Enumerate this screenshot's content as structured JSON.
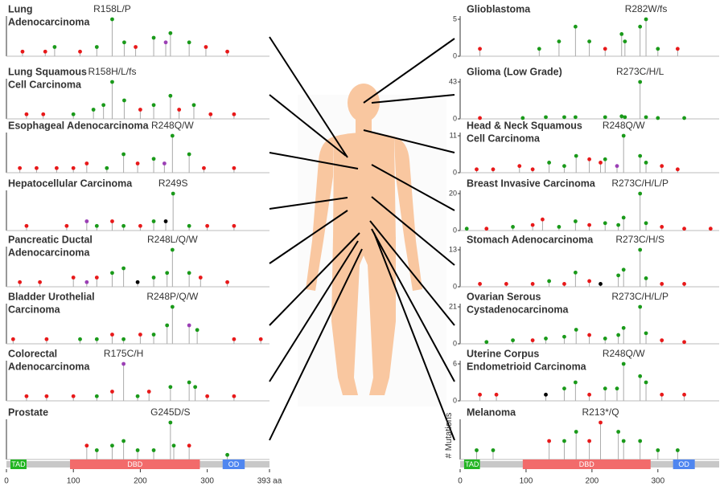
{
  "chart_data": [
    {
      "type": "lollipop",
      "title_lines": [
        "Lung",
        "Adenocarcinoma"
      ],
      "hotspot_label": "R158L/P",
      "xlim": [
        0,
        393
      ],
      "ylim": [
        0,
        8
      ],
      "x": [
        24,
        58,
        72,
        110,
        135,
        158,
        176,
        193,
        220,
        238,
        245,
        273,
        298,
        330
      ],
      "values": [
        1,
        1,
        2,
        1,
        2,
        8,
        3,
        2,
        4,
        3,
        5,
        3,
        2,
        1
      ],
      "colors": [
        "#e8191a",
        "#e8191a",
        "#1a9a1a",
        "#e8191a",
        "#1a9a1a",
        "#1a9a1a",
        "#1a9a1a",
        "#e8191a",
        "#1a9a1a",
        "#9b3fb5",
        "#1a9a1a",
        "#1a9a1a",
        "#e8191a",
        "#e8191a"
      ]
    },
    {
      "type": "lollipop",
      "title_lines": [
        "Lung Squamous",
        "Cell Carcinoma"
      ],
      "hotspot_label": "R158H/L/fs",
      "xlim": [
        0,
        393
      ],
      "ylim": [
        0,
        8
      ],
      "x": [
        30,
        55,
        100,
        130,
        145,
        158,
        176,
        200,
        220,
        245,
        258,
        280,
        305,
        340
      ],
      "values": [
        1,
        1,
        1,
        2,
        3,
        8,
        4,
        2,
        3,
        5,
        2,
        3,
        1,
        1
      ],
      "colors": [
        "#e8191a",
        "#e8191a",
        "#1a9a1a",
        "#1a9a1a",
        "#1a9a1a",
        "#1a9a1a",
        "#1a9a1a",
        "#e8191a",
        "#1a9a1a",
        "#1a9a1a",
        "#e8191a",
        "#1a9a1a",
        "#e8191a",
        "#e8191a"
      ]
    },
    {
      "type": "lollipop",
      "title_lines": [
        "Esophageal Adenocarcinoma"
      ],
      "hotspot_label": "R248Q/W",
      "xlim": [
        0,
        393
      ],
      "ylim": [
        0,
        8
      ],
      "x": [
        20,
        45,
        75,
        100,
        120,
        150,
        175,
        196,
        220,
        236,
        248,
        273,
        295,
        340
      ],
      "values": [
        1,
        1,
        1,
        1,
        2,
        1,
        4,
        2,
        3,
        2,
        8,
        4,
        1,
        1
      ],
      "colors": [
        "#e8191a",
        "#e8191a",
        "#e8191a",
        "#e8191a",
        "#e8191a",
        "#1a9a1a",
        "#1a9a1a",
        "#e8191a",
        "#1a9a1a",
        "#9b3fb5",
        "#1a9a1a",
        "#1a9a1a",
        "#e8191a",
        "#e8191a"
      ]
    },
    {
      "type": "lollipop",
      "title_lines": [
        "Hepatocellular Carcinoma"
      ],
      "hotspot_label": "R249S",
      "xlim": [
        0,
        393
      ],
      "ylim": [
        0,
        8
      ],
      "x": [
        30,
        90,
        120,
        135,
        158,
        175,
        200,
        220,
        238,
        249,
        273,
        300,
        340
      ],
      "values": [
        1,
        1,
        2,
        1,
        2,
        1,
        1,
        2,
        2,
        8,
        1,
        1,
        1
      ],
      "colors": [
        "#e8191a",
        "#e8191a",
        "#9b3fb5",
        "#1a9a1a",
        "#e8191a",
        "#1a9a1a",
        "#e8191a",
        "#1a9a1a",
        "#000000",
        "#1a9a1a",
        "#1a9a1a",
        "#e8191a",
        "#e8191a"
      ]
    },
    {
      "type": "lollipop",
      "title_lines": [
        "Pancreatic Ductal",
        "Adenocarcinoma"
      ],
      "hotspot_label": "R248L/Q/W",
      "xlim": [
        0,
        393
      ],
      "ylim": [
        0,
        8
      ],
      "x": [
        20,
        50,
        100,
        120,
        135,
        158,
        175,
        196,
        220,
        240,
        248,
        273,
        290,
        330
      ],
      "values": [
        1,
        1,
        2,
        1,
        2,
        3,
        4,
        1,
        2,
        3,
        8,
        3,
        2,
        1
      ],
      "colors": [
        "#e8191a",
        "#e8191a",
        "#e8191a",
        "#9b3fb5",
        "#e8191a",
        "#1a9a1a",
        "#1a9a1a",
        "#000000",
        "#1a9a1a",
        "#1a9a1a",
        "#1a9a1a",
        "#1a9a1a",
        "#e8191a",
        "#e8191a"
      ]
    },
    {
      "type": "lollipop",
      "title_lines": [
        "Bladder Urothelial",
        "Carcinoma"
      ],
      "hotspot_label": "R248P/Q/W",
      "xlim": [
        0,
        393
      ],
      "ylim": [
        0,
        8
      ],
      "x": [
        10,
        60,
        110,
        135,
        158,
        175,
        200,
        220,
        240,
        248,
        273,
        285,
        340,
        380
      ],
      "values": [
        1,
        1,
        1,
        1,
        2,
        1,
        2,
        2,
        4,
        8,
        4,
        3,
        1,
        1
      ],
      "colors": [
        "#e8191a",
        "#e8191a",
        "#1a9a1a",
        "#1a9a1a",
        "#e8191a",
        "#1a9a1a",
        "#e8191a",
        "#1a9a1a",
        "#1a9a1a",
        "#1a9a1a",
        "#9b3fb5",
        "#1a9a1a",
        "#e8191a",
        "#e8191a"
      ]
    },
    {
      "type": "lollipop",
      "title_lines": [
        "Colorectal",
        "Adenocarcinoma"
      ],
      "hotspot_label": "R175C/H",
      "xlim": [
        0,
        393
      ],
      "ylim": [
        0,
        8
      ],
      "x": [
        30,
        60,
        100,
        135,
        158,
        175,
        196,
        213,
        245,
        273,
        282,
        300,
        340
      ],
      "values": [
        1,
        1,
        1,
        1,
        2,
        8,
        1,
        2,
        3,
        4,
        3,
        1,
        1
      ],
      "colors": [
        "#e8191a",
        "#e8191a",
        "#e8191a",
        "#1a9a1a",
        "#e8191a",
        "#9b3fb5",
        "#1a9a1a",
        "#e8191a",
        "#1a9a1a",
        "#1a9a1a",
        "#1a9a1a",
        "#e8191a",
        "#e8191a"
      ]
    },
    {
      "type": "lollipop",
      "title_lines": [
        "Prostate"
      ],
      "hotspot_label": "G245D/S",
      "xlim": [
        0,
        393
      ],
      "ylim": [
        0,
        8
      ],
      "x": [
        120,
        135,
        158,
        175,
        196,
        220,
        245,
        250,
        273,
        330
      ],
      "values": [
        3,
        2,
        3,
        4,
        2,
        2,
        8,
        3,
        3,
        1
      ],
      "colors": [
        "#e8191a",
        "#1a9a1a",
        "#1a9a1a",
        "#1a9a1a",
        "#1a9a1a",
        "#1a9a1a",
        "#1a9a1a",
        "#1a9a1a",
        "#e8191a",
        "#1a9a1a"
      ],
      "domains": [
        {
          "label": "TAD",
          "start": 6,
          "end": 30,
          "color": "#22b522"
        },
        {
          "label": "DBD",
          "start": 95,
          "end": 289,
          "color": "#f26b6b"
        },
        {
          "label": "OD",
          "start": 323,
          "end": 356,
          "color": "#4f86f0"
        }
      ],
      "xticks": [
        0,
        100,
        200,
        300,
        {
          "value": 393,
          "label": "393 aa"
        }
      ]
    },
    {
      "type": "lollipop",
      "title_lines": [
        "Glioblastoma"
      ],
      "hotspot_label": "R282W/fs",
      "xlim": [
        0,
        393
      ],
      "ylim": [
        0,
        5
      ],
      "yticks": [
        0,
        5
      ],
      "x": [
        30,
        120,
        150,
        175,
        196,
        220,
        245,
        250,
        273,
        282,
        300,
        330
      ],
      "values": [
        1,
        1,
        2,
        4,
        2,
        1,
        3,
        2,
        4,
        5,
        1,
        1
      ],
      "colors": [
        "#e8191a",
        "#1a9a1a",
        "#1a9a1a",
        "#1a9a1a",
        "#1a9a1a",
        "#e8191a",
        "#1a9a1a",
        "#1a9a1a",
        "#1a9a1a",
        "#1a9a1a",
        "#1a9a1a",
        "#e8191a"
      ]
    },
    {
      "type": "lollipop",
      "title_lines": [
        "Glioma (Low Grade)"
      ],
      "hotspot_label": "R273C/H/L",
      "xlim": [
        0,
        393
      ],
      "ylim": [
        0,
        43
      ],
      "yticks": [
        0,
        43
      ],
      "x": [
        30,
        95,
        130,
        158,
        175,
        220,
        245,
        250,
        273,
        282,
        300,
        340
      ],
      "values": [
        1,
        1,
        2,
        2,
        2,
        2,
        3,
        2,
        43,
        2,
        1,
        1
      ],
      "colors": [
        "#e8191a",
        "#1a9a1a",
        "#1a9a1a",
        "#1a9a1a",
        "#1a9a1a",
        "#1a9a1a",
        "#1a9a1a",
        "#1a9a1a",
        "#1a9a1a",
        "#1a9a1a",
        "#1a9a1a",
        "#1a9a1a"
      ]
    },
    {
      "type": "lollipop",
      "title_lines": [
        "Head & Neck Squamous",
        "Cell Carcinoma"
      ],
      "hotspot_label": "R248Q/W",
      "xlim": [
        0,
        393
      ],
      "ylim": [
        0,
        11
      ],
      "yticks": [
        0,
        11
      ],
      "x": [
        25,
        50,
        90,
        110,
        135,
        158,
        176,
        196,
        213,
        220,
        238,
        248,
        273,
        282,
        306,
        330
      ],
      "values": [
        1,
        1,
        2,
        1,
        3,
        2,
        5,
        4,
        3,
        4,
        2,
        11,
        5,
        3,
        2,
        1
      ],
      "colors": [
        "#e8191a",
        "#e8191a",
        "#e8191a",
        "#e8191a",
        "#1a9a1a",
        "#1a9a1a",
        "#1a9a1a",
        "#e8191a",
        "#e8191a",
        "#1a9a1a",
        "#9b3fb5",
        "#1a9a1a",
        "#1a9a1a",
        "#1a9a1a",
        "#e8191a",
        "#e8191a"
      ]
    },
    {
      "type": "lollipop",
      "title_lines": [
        "Breast Invasive Carcinoma"
      ],
      "hotspot_label": "R273C/H/L/P",
      "xlim": [
        0,
        393
      ],
      "ylim": [
        0,
        20
      ],
      "yticks": [
        0,
        20
      ],
      "x": [
        10,
        40,
        80,
        110,
        125,
        150,
        175,
        196,
        220,
        240,
        248,
        273,
        282,
        306,
        340,
        380
      ],
      "values": [
        1,
        1,
        2,
        3,
        6,
        2,
        5,
        3,
        4,
        3,
        7,
        20,
        4,
        2,
        1,
        1
      ],
      "colors": [
        "#1a9a1a",
        "#e8191a",
        "#1a9a1a",
        "#e8191a",
        "#e8191a",
        "#1a9a1a",
        "#1a9a1a",
        "#e8191a",
        "#1a9a1a",
        "#1a9a1a",
        "#1a9a1a",
        "#1a9a1a",
        "#1a9a1a",
        "#e8191a",
        "#e8191a",
        "#e8191a"
      ]
    },
    {
      "type": "lollipop",
      "title_lines": [
        "Stomach Adenocarcinoma"
      ],
      "hotspot_label": "R273C/H/S",
      "xlim": [
        0,
        393
      ],
      "ylim": [
        0,
        13
      ],
      "yticks": [
        0,
        13
      ],
      "x": [
        30,
        70,
        110,
        135,
        158,
        175,
        196,
        213,
        240,
        248,
        273,
        282,
        306,
        340
      ],
      "values": [
        1,
        1,
        1,
        2,
        1,
        5,
        2,
        1,
        4,
        6,
        13,
        3,
        1,
        1
      ],
      "colors": [
        "#e8191a",
        "#e8191a",
        "#e8191a",
        "#1a9a1a",
        "#e8191a",
        "#1a9a1a",
        "#e8191a",
        "#000000",
        "#1a9a1a",
        "#1a9a1a",
        "#1a9a1a",
        "#1a9a1a",
        "#e8191a",
        "#e8191a"
      ]
    },
    {
      "type": "lollipop",
      "title_lines": [
        "Ovarian Serous",
        "Cystadenocarcinoma"
      ],
      "hotspot_label": "R273C/H/L/P",
      "xlim": [
        0,
        393
      ],
      "ylim": [
        0,
        21
      ],
      "yticks": [
        0,
        21
      ],
      "x": [
        40,
        80,
        110,
        130,
        158,
        176,
        196,
        220,
        240,
        248,
        273,
        282,
        306,
        340
      ],
      "values": [
        1,
        2,
        2,
        3,
        4,
        8,
        5,
        3,
        5,
        9,
        21,
        6,
        2,
        1
      ],
      "colors": [
        "#1a9a1a",
        "#1a9a1a",
        "#e8191a",
        "#1a9a1a",
        "#1a9a1a",
        "#1a9a1a",
        "#e8191a",
        "#1a9a1a",
        "#1a9a1a",
        "#1a9a1a",
        "#1a9a1a",
        "#1a9a1a",
        "#e8191a",
        "#e8191a"
      ]
    },
    {
      "type": "lollipop",
      "title_lines": [
        "Uterine Corpus",
        "Endometrioid Carcinoma"
      ],
      "hotspot_label": "R248Q/W",
      "xlim": [
        0,
        393
      ],
      "ylim": [
        0,
        6
      ],
      "yticks": [
        0,
        6
      ],
      "x": [
        30,
        55,
        130,
        158,
        175,
        196,
        220,
        238,
        248,
        273,
        282,
        306,
        340
      ],
      "values": [
        1,
        1,
        1,
        2,
        3,
        1,
        2,
        2,
        6,
        4,
        3,
        1,
        1
      ],
      "colors": [
        "#e8191a",
        "#e8191a",
        "#000000",
        "#1a9a1a",
        "#1a9a1a",
        "#e8191a",
        "#1a9a1a",
        "#1a9a1a",
        "#1a9a1a",
        "#1a9a1a",
        "#1a9a1a",
        "#e8191a",
        "#e8191a"
      ]
    },
    {
      "type": "lollipop",
      "title_lines": [
        "Melanoma"
      ],
      "hotspot_label": "R213*/Q",
      "xlim": [
        0,
        393
      ],
      "ylim": [
        0,
        4
      ],
      "ylabel": "# Mutations",
      "x": [
        25,
        50,
        135,
        158,
        176,
        196,
        213,
        240,
        248,
        273,
        300,
        330
      ],
      "values": [
        1,
        1,
        2,
        2,
        3,
        2,
        4,
        3,
        2,
        2,
        1,
        1
      ],
      "colors": [
        "#1a9a1a",
        "#1a9a1a",
        "#e8191a",
        "#1a9a1a",
        "#1a9a1a",
        "#e8191a",
        "#e8191a",
        "#1a9a1a",
        "#1a9a1a",
        "#1a9a1a",
        "#1a9a1a",
        "#1a9a1a"
      ],
      "domains": [
        {
          "label": "TAD",
          "start": 6,
          "end": 30,
          "color": "#22b522"
        },
        {
          "label": "DBD",
          "start": 95,
          "end": 289,
          "color": "#f26b6b"
        },
        {
          "label": "OD",
          "start": 323,
          "end": 356,
          "color": "#4f86f0"
        }
      ],
      "xticks": [
        0,
        100,
        200,
        300
      ]
    }
  ]
}
